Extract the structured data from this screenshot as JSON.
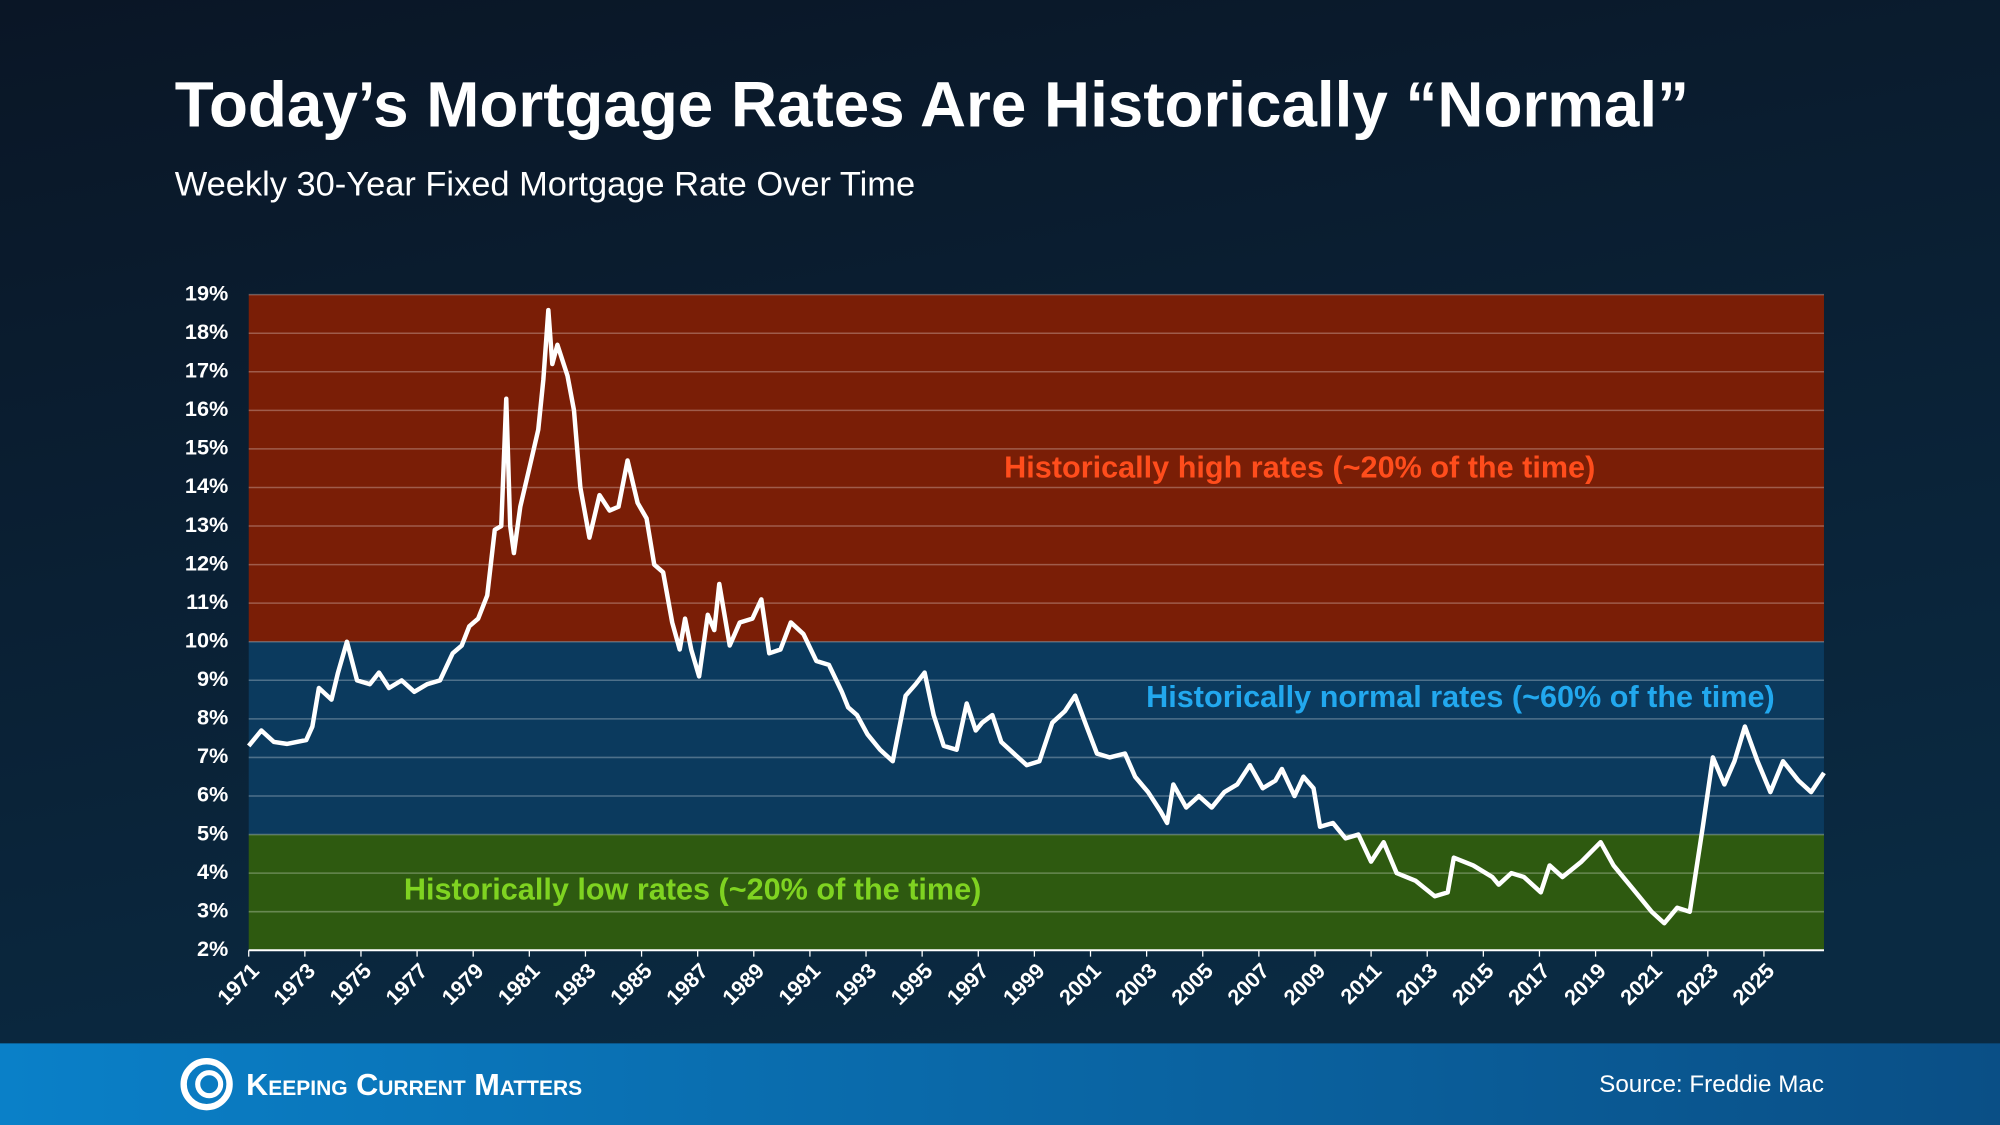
{
  "chart_data": {
    "type": "line",
    "title": "Today’s Mortgage Rates Are Historically “Normal”",
    "subtitle": "Weekly 30-Year Fixed Mortgage Rate Over Time",
    "source": "Source: Freddie Mac",
    "brand": "Keeping Current Matters",
    "bands": [
      {
        "from": 10,
        "to": 19,
        "color": "#7a1e06",
        "label": "Historically high rates (~20% of the time)",
        "label_color": "#ff4d1c"
      },
      {
        "from": 5,
        "to": 10,
        "color": "#0b3a5e",
        "label": "Historically normal rates (~60% of the time)",
        "label_color": "#22a8ee"
      },
      {
        "from": 2,
        "to": 5,
        "color": "#2e5a10",
        "label": "Historically low rates (~20% of the time)",
        "label_color": "#7fd321"
      }
    ],
    "xlim": [
      1971,
      2027.14
    ],
    "xticks": [
      1971,
      1973,
      1975,
      1977,
      1979,
      1981,
      1983,
      1985,
      1987,
      1989,
      1991,
      1993,
      1995,
      1997,
      1999,
      2001,
      2003,
      2005,
      2007,
      2009,
      2011,
      2013,
      2015,
      2017,
      2019,
      2021,
      2023,
      2025
    ],
    "ylim": [
      2,
      19
    ],
    "yticks": [
      {
        "value": 2,
        "label": "2%"
      },
      {
        "value": 3,
        "label": "3%"
      },
      {
        "value": 4,
        "label": "4%"
      },
      {
        "value": 5,
        "label": "5%"
      },
      {
        "value": 6,
        "label": "6%"
      },
      {
        "value": 7,
        "label": "7%"
      },
      {
        "value": 8,
        "label": "8%"
      },
      {
        "value": 9,
        "label": "9%"
      },
      {
        "value": 10,
        "label": "10%"
      },
      {
        "value": 11,
        "label": "11%"
      },
      {
        "value": 12,
        "label": "12%"
      },
      {
        "value": 13,
        "label": "13%"
      },
      {
        "value": 14,
        "label": "14%"
      },
      {
        "value": 15,
        "label": "15%"
      },
      {
        "value": 16,
        "label": "16%"
      },
      {
        "value": 17,
        "label": "17%"
      },
      {
        "value": 18,
        "label": "18%"
      },
      {
        "value": 19,
        "label": "19%"
      }
    ],
    "grid": true,
    "x": [
      1971,
      1971.45,
      1971.9,
      1972.36,
      1973.05,
      1973.27,
      1973.5,
      1973.95,
      1974.18,
      1974.5,
      1974.86,
      1975.32,
      1975.64,
      1976,
      1976.45,
      1976.9,
      1977.36,
      1977.82,
      1978.27,
      1978.59,
      1978.86,
      1979.18,
      1979.5,
      1979.77,
      1980,
      1980.18,
      1980.32,
      1980.45,
      1980.68,
      1981,
      1981.32,
      1981.5,
      1981.68,
      1981.82,
      1982,
      1982.36,
      1982.59,
      1982.82,
      1983.14,
      1983.5,
      1983.86,
      1984.18,
      1984.5,
      1984.86,
      1985.18,
      1985.45,
      1985.77,
      1986.09,
      1986.36,
      1986.55,
      1986.77,
      1987.05,
      1987.36,
      1987.59,
      1987.77,
      1988.14,
      1988.5,
      1988.95,
      1989.27,
      1989.55,
      1989.95,
      1990.32,
      1990.77,
      1991.23,
      1991.68,
      1992.14,
      1992.36,
      1992.68,
      1993.05,
      1993.5,
      1993.95,
      1994.41,
      1994.77,
      1995.09,
      1995.41,
      1995.77,
      1996.23,
      1996.59,
      1996.91,
      1997.14,
      1997.5,
      1997.82,
      1998.27,
      1998.73,
      1999.18,
      1999.64,
      2000.09,
      2000.45,
      2000.86,
      2001.23,
      2001.68,
      2002.23,
      2002.59,
      2003.05,
      2003.5,
      2003.73,
      2003.95,
      2004.41,
      2004.86,
      2005.32,
      2005.77,
      2006.23,
      2006.68,
      2007.14,
      2007.59,
      2007.82,
      2008.27,
      2008.59,
      2008.95,
      2009.18,
      2009.64,
      2010.09,
      2010.55,
      2011,
      2011.45,
      2011.91,
      2012.59,
      2013.27,
      2013.73,
      2013.95,
      2014.64,
      2015.32,
      2015.55,
      2016,
      2016.45,
      2017.05,
      2017.36,
      2017.82,
      2018.5,
      2019.18,
      2019.64,
      2020.32,
      2021,
      2021.45,
      2021.91,
      2022.36,
      2022.82,
      2023.18,
      2023.59,
      2023.95,
      2024.32,
      2024.77,
      2025.23,
      2025.68,
      2026.23,
      2026.68,
      2027.14
    ],
    "series": [
      {
        "color": "#ffffff",
        "values": [
          7.3,
          7.7,
          7.4,
          7.35,
          7.45,
          7.8,
          8.8,
          8.5,
          9.2,
          10.0,
          9.0,
          8.9,
          9.2,
          8.8,
          9.0,
          8.7,
          8.9,
          9.0,
          9.7,
          9.9,
          10.4,
          10.6,
          11.2,
          12.9,
          13.0,
          16.3,
          13.0,
          12.3,
          13.5,
          14.5,
          15.5,
          16.8,
          18.6,
          17.2,
          17.7,
          16.9,
          16.0,
          14.0,
          12.7,
          13.8,
          13.4,
          13.5,
          14.7,
          13.6,
          13.2,
          12.0,
          11.8,
          10.5,
          9.8,
          10.6,
          9.8,
          9.1,
          10.7,
          10.3,
          11.5,
          9.9,
          10.5,
          10.6,
          11.1,
          9.7,
          9.8,
          10.5,
          10.2,
          9.5,
          9.4,
          8.7,
          8.3,
          8.1,
          7.6,
          7.2,
          6.9,
          8.6,
          8.9,
          9.2,
          8.1,
          7.3,
          7.2,
          8.4,
          7.7,
          7.9,
          8.1,
          7.4,
          7.1,
          6.8,
          6.9,
          7.9,
          8.2,
          8.6,
          7.8,
          7.1,
          7.0,
          7.1,
          6.5,
          6.1,
          5.6,
          5.3,
          6.3,
          5.7,
          6.0,
          5.7,
          6.1,
          6.3,
          6.8,
          6.2,
          6.4,
          6.7,
          6.0,
          6.5,
          6.2,
          5.2,
          5.3,
          4.9,
          5.0,
          4.3,
          4.8,
          4.0,
          3.8,
          3.4,
          3.5,
          4.4,
          4.2,
          3.9,
          3.7,
          4.0,
          3.9,
          3.5,
          4.2,
          3.9,
          4.3,
          4.8,
          4.2,
          3.6,
          3.0,
          2.7,
          3.1,
          3.0,
          5.2,
          7.0,
          6.3,
          6.9,
          7.8,
          6.9,
          6.1,
          6.9,
          6.4,
          6.1,
          6.6
        ]
      }
    ]
  }
}
